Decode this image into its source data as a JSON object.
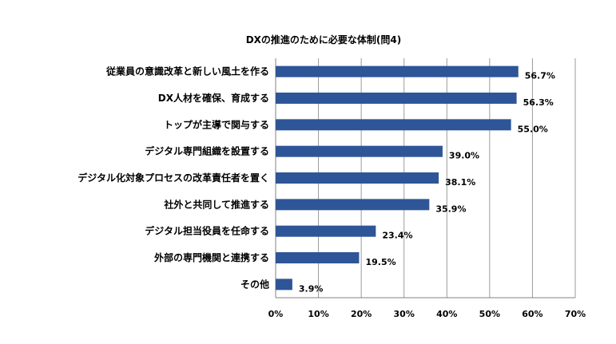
{
  "chart_data": {
    "type": "bar",
    "orientation": "horizontal",
    "title": "DXの推進のために必要な体制(問4)",
    "categories": [
      "従業員の意識改革と新しい風土を作る",
      "DX人材を確保、育成する",
      "トップが主導で関与する",
      "デジタル専門組織を設置する",
      "デジタル化対象プロセスの改革責任者を置く",
      "社外と共同して推進する",
      "デジタル担当役員を任命する",
      "外部の専門機関と連携する",
      "その他"
    ],
    "values": [
      56.7,
      56.3,
      55.0,
      39.0,
      38.1,
      35.9,
      23.4,
      19.5,
      3.9
    ],
    "value_labels": [
      "56.7%",
      "56.3%",
      "55.0%",
      "39.0%",
      "38.1%",
      "35.9%",
      "23.4%",
      "19.5%",
      "3.9%"
    ],
    "xlim": [
      0,
      70
    ],
    "xticks": [
      0,
      10,
      20,
      30,
      40,
      50,
      60,
      70
    ],
    "xtick_labels": [
      "0%",
      "10%",
      "20%",
      "30%",
      "40%",
      "50%",
      "60%",
      "70%"
    ],
    "xlabel": "",
    "ylabel": "",
    "grid": true,
    "legend": "none",
    "bar_color": "#2E5597",
    "grid_color": "#9A9A9A"
  }
}
